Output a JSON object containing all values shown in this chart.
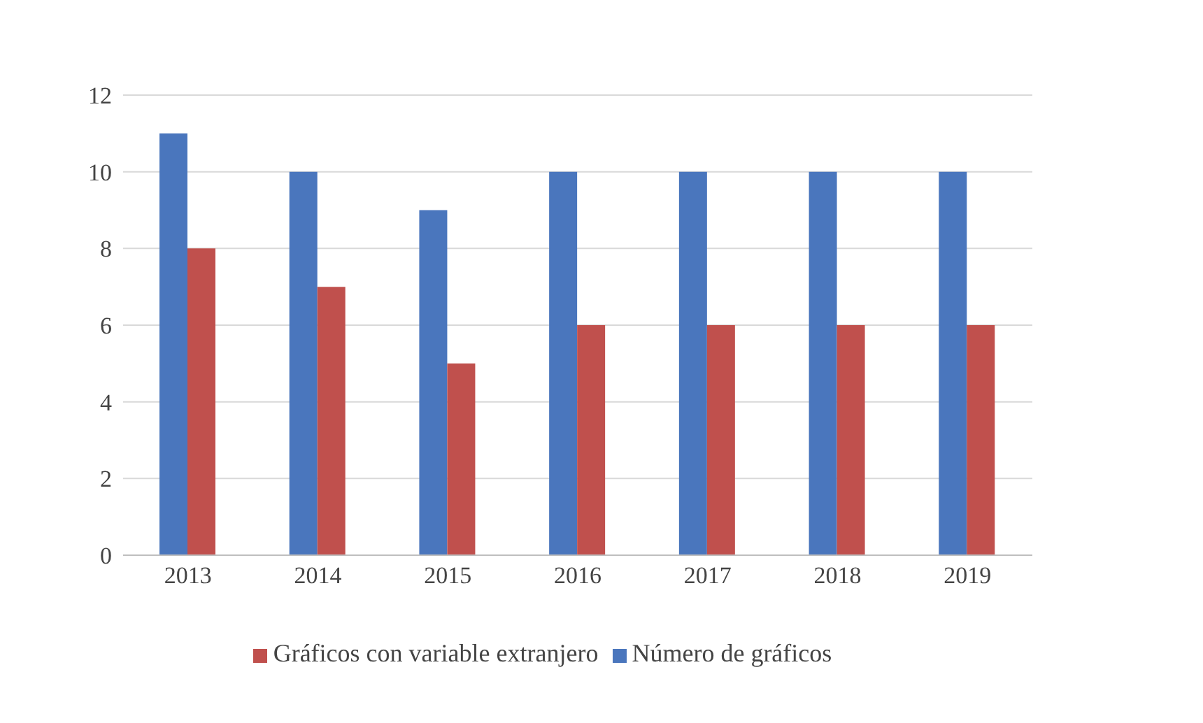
{
  "chart_data": {
    "type": "bar",
    "categories": [
      "2013",
      "2014",
      "2015",
      "2016",
      "2017",
      "2018",
      "2019"
    ],
    "series": [
      {
        "name": "Número de gráficos",
        "color": "#4a76bd",
        "values": [
          11,
          10,
          9,
          10,
          10,
          10,
          10
        ]
      },
      {
        "name": "Gráficos con variable extranjero",
        "color": "#c0504d",
        "values": [
          8,
          7,
          5,
          6,
          6,
          6,
          6
        ]
      }
    ],
    "ylim": [
      0,
      12
    ],
    "yticks": [
      0,
      2,
      4,
      6,
      8,
      10,
      12
    ],
    "grid": "y",
    "legend": "bottom"
  }
}
